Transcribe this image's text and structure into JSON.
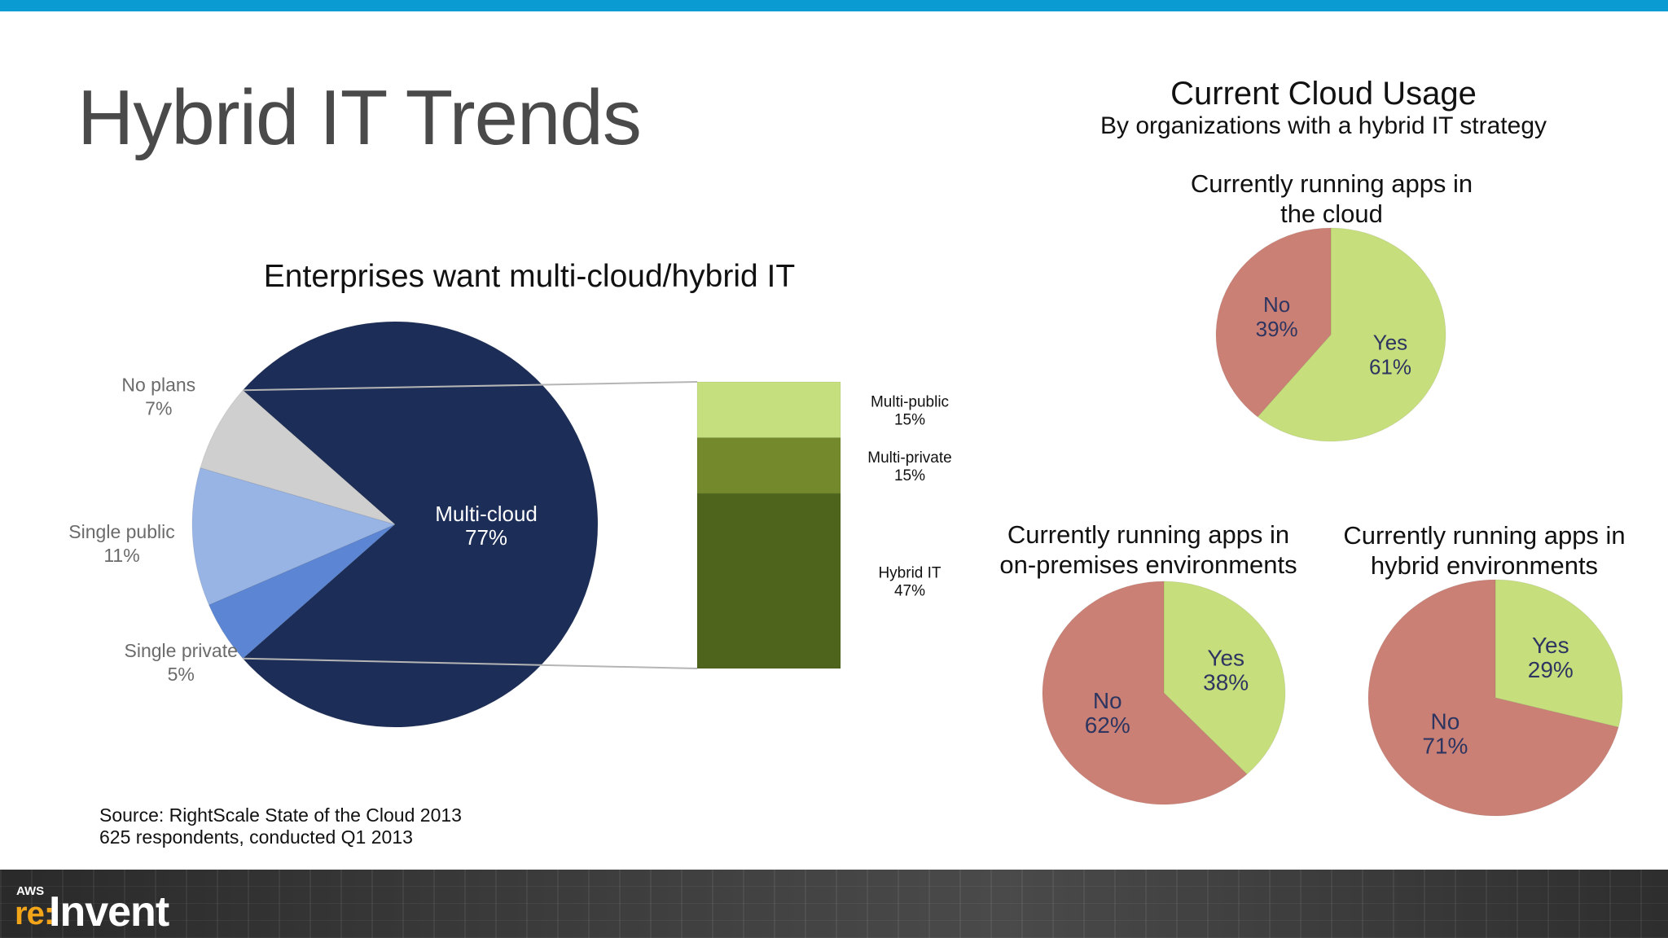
{
  "slide": {
    "title": "Hybrid IT Trends",
    "source_line1": "Source: RightScale State of the Cloud 2013",
    "source_line2": "625 respondents, conducted Q1 2013"
  },
  "footer": {
    "logo_aws": "AWS",
    "logo_re": "re:",
    "logo_invent": "Invent"
  },
  "colors": {
    "top_bar": "#0a9bd3",
    "multi_cloud": "#1c2d57",
    "no_plans": "#cfcfcf",
    "single_public": "#98b4e4",
    "single_private": "#5c86d4",
    "multi_public": "#c5de7e",
    "multi_private": "#73892b",
    "hybrid_it": "#4e631c",
    "yes": "#c6de7c",
    "no": "#cb8075"
  },
  "right": {
    "title": "Current Cloud Usage",
    "subtitle": "By organizations with a hybrid IT strategy"
  },
  "chart_data": [
    {
      "type": "pie",
      "title": "Enterprises want multi-cloud/hybrid IT",
      "slices": [
        {
          "label": "Multi-cloud",
          "value": 77,
          "value_label": "77%"
        },
        {
          "label": "Single private",
          "value": 5,
          "value_label": "5%"
        },
        {
          "label": "Single public",
          "value": 11,
          "value_label": "11%"
        },
        {
          "label": "No plans",
          "value": 7,
          "value_label": "7%"
        }
      ],
      "breakdown": {
        "of": "Multi-cloud",
        "segments": [
          {
            "label": "Multi-public",
            "value": 15,
            "value_label": "15%"
          },
          {
            "label": "Multi-private",
            "value": 15,
            "value_label": "15%"
          },
          {
            "label": "Hybrid IT",
            "value": 47,
            "value_label": "47%"
          }
        ]
      }
    },
    {
      "type": "pie",
      "title_line1": "Currently running apps in",
      "title_line2": "the cloud",
      "slices": [
        {
          "label": "Yes",
          "value": 61,
          "value_label": "61%"
        },
        {
          "label": "No",
          "value": 39,
          "value_label": "39%"
        }
      ]
    },
    {
      "type": "pie",
      "title_line1": "Currently running apps in",
      "title_line2": "on-premises environments",
      "slices": [
        {
          "label": "Yes",
          "value": 38,
          "value_label": "38%"
        },
        {
          "label": "No",
          "value": 62,
          "value_label": "62%"
        }
      ]
    },
    {
      "type": "pie",
      "title_line1": "Currently running apps in",
      "title_line2": "hybrid environments",
      "slices": [
        {
          "label": "Yes",
          "value": 29,
          "value_label": "29%"
        },
        {
          "label": "No",
          "value": 71,
          "value_label": "71%"
        }
      ]
    }
  ]
}
